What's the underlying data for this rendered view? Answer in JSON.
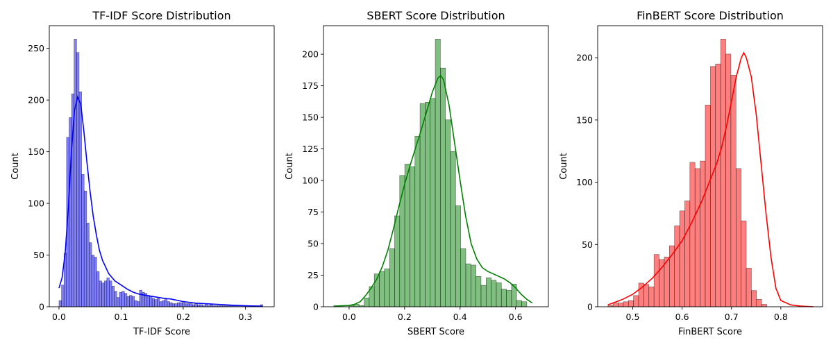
{
  "chart_data": [
    {
      "type": "histogram",
      "title": "TF-IDF Score Distribution",
      "xlabel": "TF-IDF Score",
      "ylabel": "Count",
      "color": "#0000ff",
      "xlim": [
        -0.0156,
        0.3464
      ],
      "ylim": [
        0,
        271.95
      ],
      "xticks": [
        0.0,
        0.1,
        0.2,
        0.3
      ],
      "xtick_labels": [
        "0.0",
        "0.1",
        "0.2",
        "0.3"
      ],
      "yticks": [
        0,
        50,
        100,
        150,
        200,
        250
      ],
      "ytick_labels": [
        "0",
        "50",
        "100",
        "150",
        "200",
        "250"
      ],
      "bin_start": 0.0,
      "bin_width": 0.00405,
      "counts": [
        6,
        21,
        52,
        164,
        183,
        206,
        259,
        246,
        208,
        128,
        112,
        81,
        62,
        50,
        48,
        34,
        25,
        23,
        25,
        28,
        25,
        20,
        15,
        9,
        14,
        15,
        13,
        10,
        11,
        10,
        6,
        5,
        16,
        14,
        13,
        11,
        10,
        8,
        7,
        8,
        5,
        6,
        8,
        5,
        4,
        3,
        3,
        4,
        4,
        4,
        3,
        3,
        3,
        2,
        3,
        2,
        2,
        1,
        3,
        1,
        2,
        1,
        1,
        1,
        1,
        1,
        1,
        1,
        1,
        1,
        1,
        1,
        1,
        1,
        1,
        1,
        1,
        1,
        1,
        1,
        2
      ],
      "kde_x": [
        0.0,
        0.005,
        0.01,
        0.015,
        0.02,
        0.025,
        0.03,
        0.035,
        0.04,
        0.045,
        0.05,
        0.055,
        0.06,
        0.065,
        0.07,
        0.08,
        0.09,
        0.1,
        0.11,
        0.12,
        0.13,
        0.14,
        0.15,
        0.16,
        0.17,
        0.18,
        0.2,
        0.22,
        0.25,
        0.28,
        0.3,
        0.328
      ],
      "kde_y": [
        18,
        28,
        52,
        95,
        150,
        190,
        203,
        196,
        170,
        140,
        112,
        88,
        70,
        55,
        45,
        32,
        25,
        21,
        17,
        14,
        12,
        11,
        10,
        9,
        8,
        7.5,
        5,
        3.5,
        2.5,
        1.5,
        1,
        0.5
      ]
    },
    {
      "type": "histogram",
      "title": "SBERT Score Distribution",
      "xlabel": "SBERT Score",
      "ylabel": "Count",
      "color": "#008000",
      "xlim": [
        -0.0925,
        0.7185
      ],
      "ylim": [
        0,
        222.6
      ],
      "xticks": [
        0.0,
        0.2,
        0.4,
        0.6
      ],
      "xtick_labels": [
        "0.0",
        "0.2",
        "0.4",
        "0.6"
      ],
      "yticks": [
        0,
        25,
        50,
        75,
        100,
        125,
        150,
        175,
        200
      ],
      "ytick_labels": [
        "0",
        "25",
        "50",
        "75",
        "100",
        "125",
        "150",
        "175",
        "200"
      ],
      "bin_start": -0.056,
      "bin_width": 0.01833,
      "counts": [
        0,
        0,
        0,
        1,
        2,
        1,
        7,
        16,
        26,
        28,
        30,
        46,
        72,
        104,
        113,
        111,
        135,
        161,
        162,
        165,
        212,
        189,
        148,
        123,
        80,
        46,
        34,
        33,
        24,
        17,
        23,
        21,
        19,
        14,
        13,
        18,
        5,
        4
      ],
      "kde_x": [
        -0.056,
        0.0,
        0.02,
        0.04,
        0.06,
        0.08,
        0.1,
        0.12,
        0.14,
        0.16,
        0.18,
        0.2,
        0.22,
        0.24,
        0.26,
        0.28,
        0.3,
        0.32,
        0.33,
        0.34,
        0.36,
        0.38,
        0.4,
        0.42,
        0.44,
        0.46,
        0.48,
        0.5,
        0.52,
        0.54,
        0.56,
        0.58,
        0.6,
        0.62,
        0.64,
        0.66
      ],
      "kde_y": [
        0.5,
        1,
        2,
        4,
        9,
        15,
        22,
        32,
        45,
        62,
        80,
        97,
        112,
        126,
        140,
        155,
        170,
        181,
        183,
        180,
        160,
        130,
        100,
        72,
        50,
        38,
        31,
        28,
        26,
        24,
        22,
        19,
        15,
        10,
        6,
        3
      ]
    },
    {
      "type": "histogram",
      "title": "FinBERT Score Distribution",
      "xlabel": "FinBERT Score",
      "ylabel": "Count",
      "color": "#ff0000",
      "xlim": [
        0.429,
        0.8846
      ],
      "ylim": [
        0,
        225.75
      ],
      "xticks": [
        0.5,
        0.6,
        0.7,
        0.8
      ],
      "xtick_labels": [
        "0.5",
        "0.6",
        "0.7",
        "0.8"
      ],
      "yticks": [
        0,
        50,
        100,
        150,
        200
      ],
      "ytick_labels": [
        "0",
        "50",
        "100",
        "150",
        "200"
      ],
      "bin_start": 0.4497,
      "bin_width": 0.01038,
      "counts": [
        1,
        3,
        3,
        4,
        5,
        9,
        19,
        18,
        16,
        42,
        38,
        40,
        49,
        65,
        77,
        85,
        116,
        111,
        117,
        162,
        193,
        195,
        215,
        203,
        186,
        111,
        69,
        31,
        13,
        6,
        2
      ],
      "kde_x": [
        0.4497,
        0.46,
        0.48,
        0.5,
        0.52,
        0.54,
        0.56,
        0.58,
        0.6,
        0.62,
        0.64,
        0.66,
        0.67,
        0.68,
        0.69,
        0.7,
        0.71,
        0.72,
        0.725,
        0.73,
        0.74,
        0.75,
        0.76,
        0.77,
        0.78,
        0.79,
        0.8,
        0.82,
        0.84,
        0.866
      ],
      "kde_y": [
        1.5,
        3,
        6,
        10,
        16,
        23,
        32,
        42,
        53,
        68,
        85,
        105,
        115,
        128,
        145,
        165,
        185,
        200,
        204,
        200,
        185,
        155,
        115,
        75,
        40,
        15,
        5,
        1.5,
        0.5,
        0
      ]
    }
  ]
}
